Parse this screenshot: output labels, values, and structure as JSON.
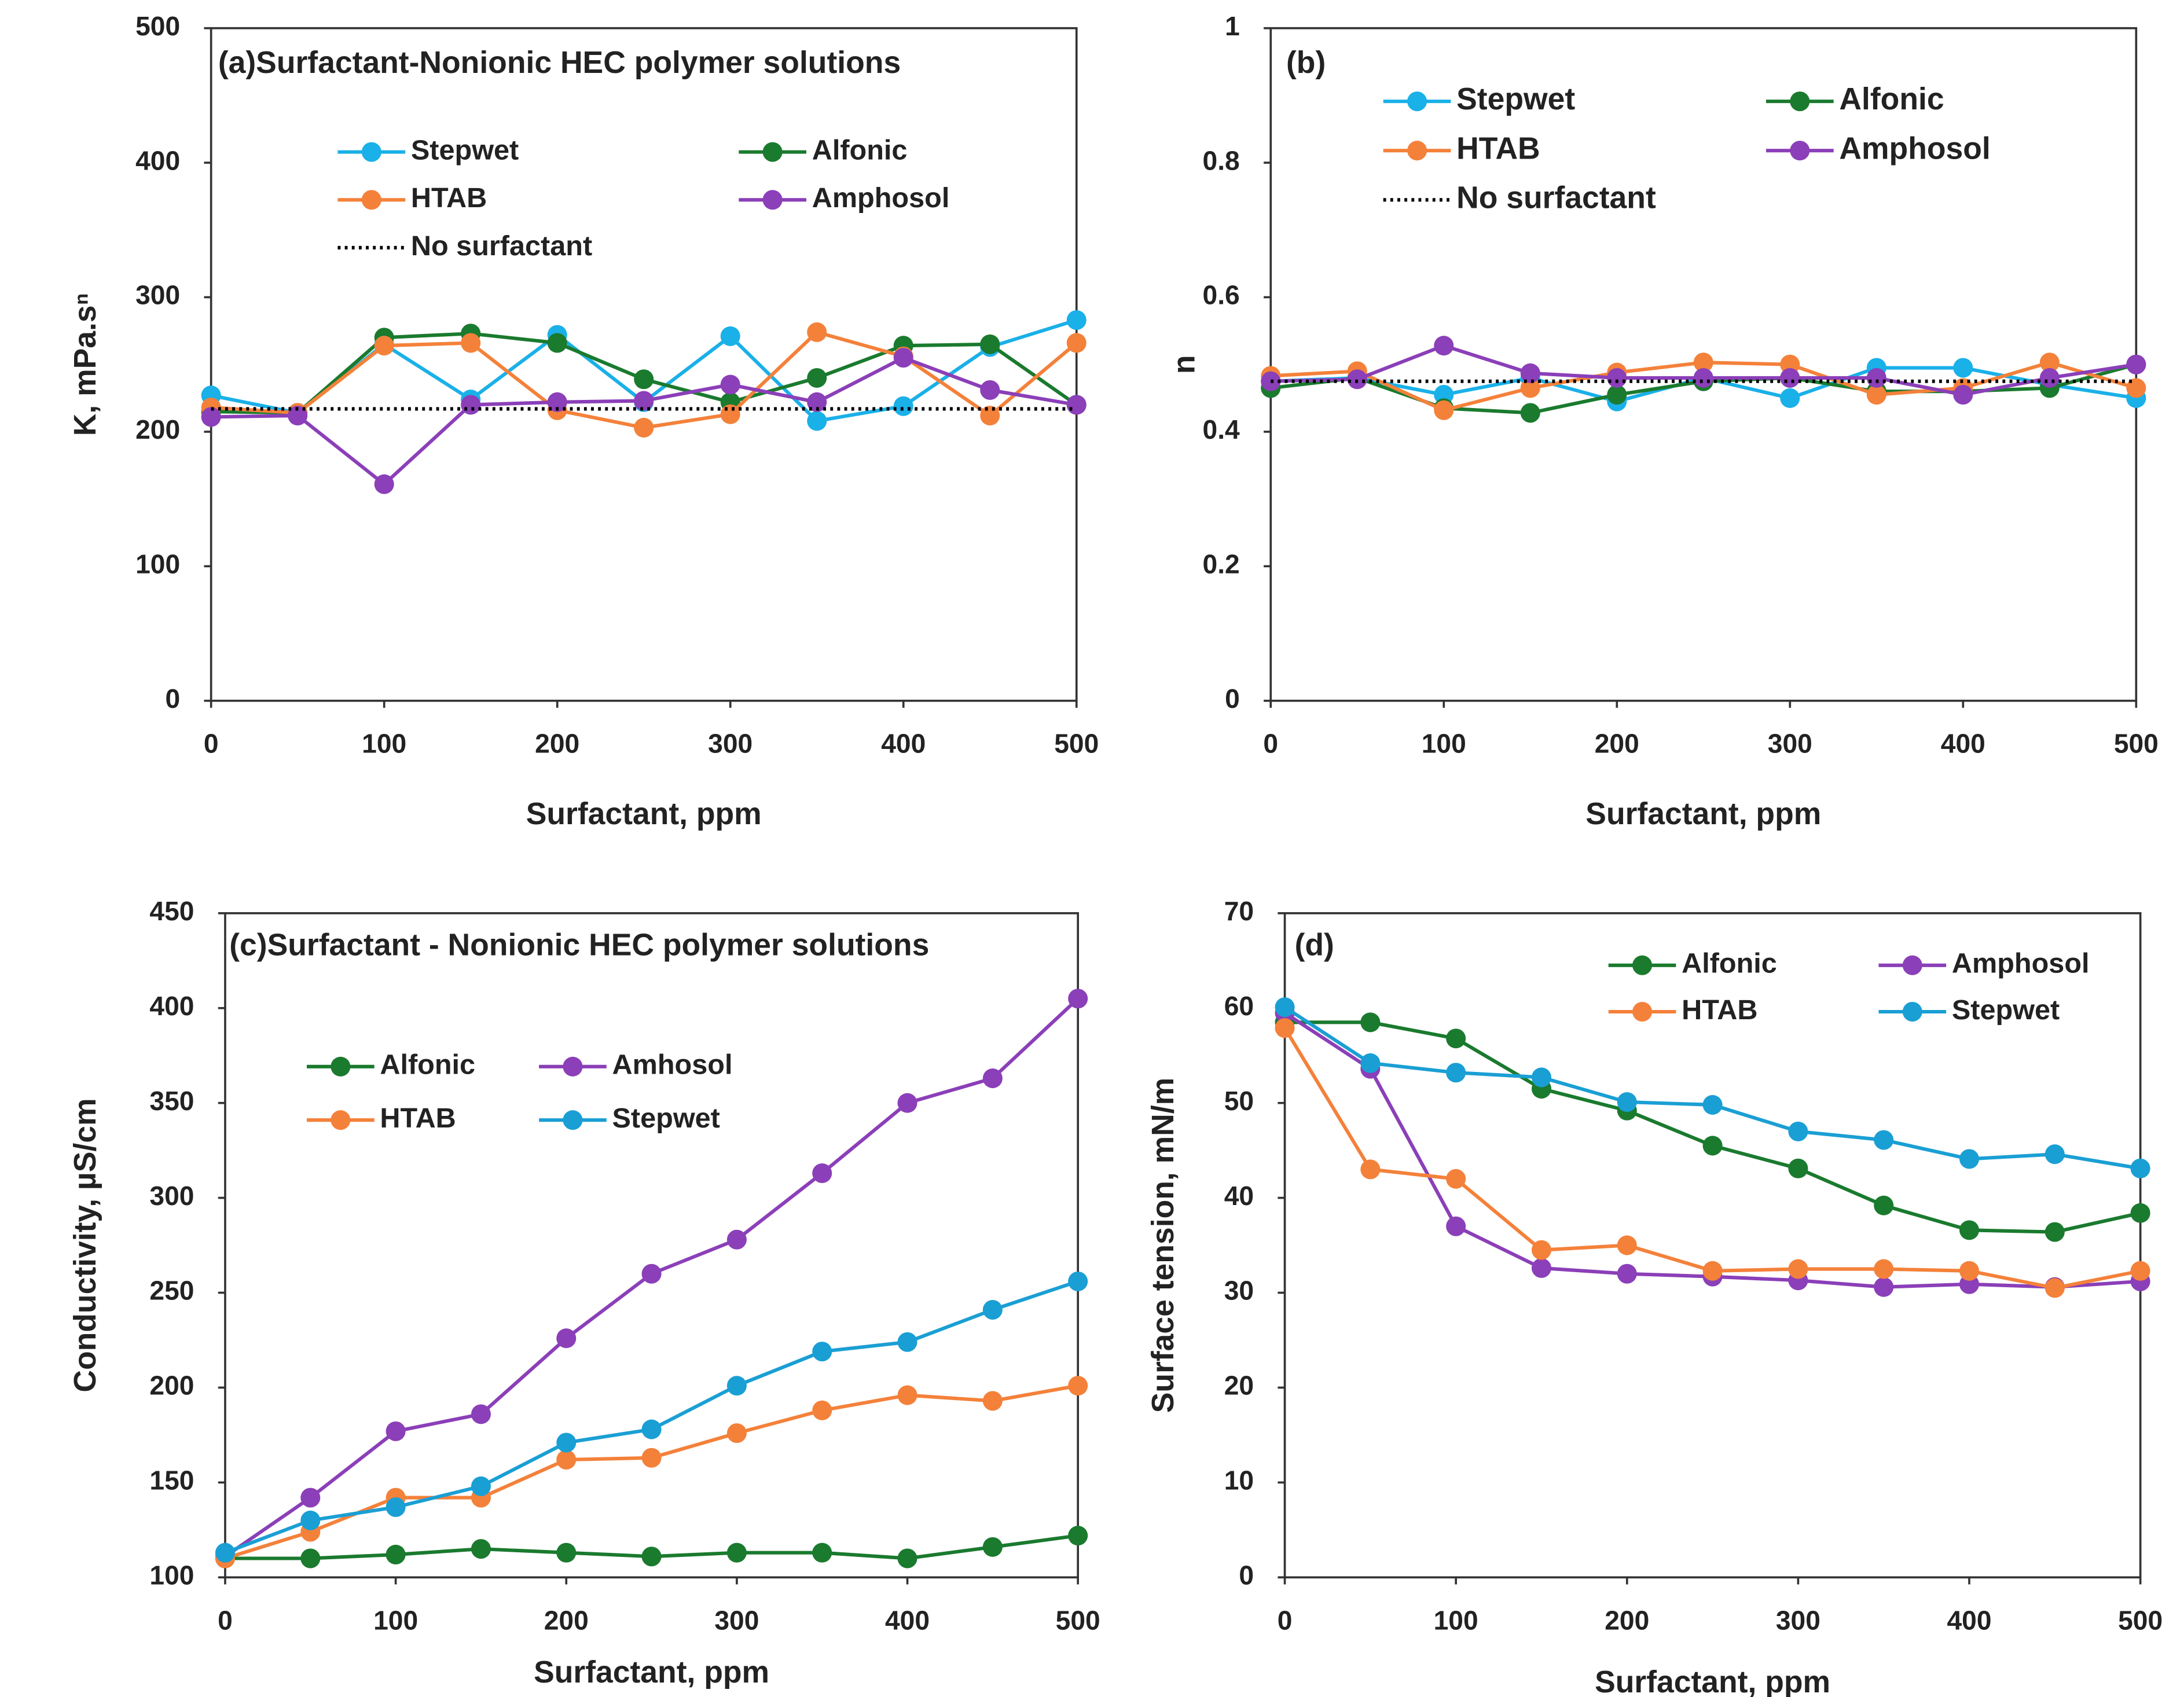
{
  "chart_data": [
    {
      "type": "line",
      "title": "(a)Surfactant-Nonionic HEC polymer solutions",
      "x_label": "Surfactant, ppm",
      "y_label": "K, mPa.sⁿ",
      "x": [
        0,
        50,
        100,
        150,
        200,
        250,
        300,
        350,
        400,
        450,
        500
      ],
      "xlim": [
        0,
        500
      ],
      "xticks": [
        0,
        100,
        200,
        300,
        400,
        500
      ],
      "ylim": [
        0,
        500
      ],
      "yticks": [
        0,
        100,
        200,
        300,
        400,
        500
      ],
      "series": [
        {
          "name": "Stepwet",
          "color": "#1ab0e8",
          "values": [
            227,
            214,
            265,
            224,
            272,
            222,
            271,
            208,
            219,
            263,
            283
          ]
        },
        {
          "name": "Alfonic",
          "color": "#1a7a2e",
          "values": [
            215,
            214,
            270,
            273,
            266,
            239,
            222,
            240,
            264,
            265,
            220
          ]
        },
        {
          "name": "HTAB",
          "color": "#f4813a",
          "values": [
            218,
            214,
            264,
            266,
            216,
            203,
            213,
            274,
            256,
            212,
            266
          ]
        },
        {
          "name": "Amphosol",
          "color": "#8b3fb8",
          "values": [
            211,
            212,
            161,
            220,
            222,
            223,
            235,
            222,
            255,
            231,
            220
          ]
        },
        {
          "name": "No surfactant",
          "color": "#000000",
          "dash": "dotted",
          "values": [
            217,
            217,
            217,
            217,
            217,
            217,
            217,
            217,
            217,
            217,
            217
          ]
        }
      ]
    },
    {
      "type": "line",
      "title": "(b)",
      "x_label": "Surfactant, ppm",
      "y_label": "n",
      "x": [
        0,
        50,
        100,
        150,
        200,
        250,
        300,
        350,
        400,
        450,
        500
      ],
      "xlim": [
        0,
        500
      ],
      "xticks": [
        0,
        100,
        200,
        300,
        400,
        500
      ],
      "ylim": [
        0,
        1
      ],
      "yticks": [
        0,
        0.2,
        0.4,
        0.6,
        0.8,
        1
      ],
      "series": [
        {
          "name": "Stepwet",
          "color": "#1ab0e8",
          "values": [
            0.475,
            0.48,
            0.455,
            0.48,
            0.445,
            0.48,
            0.45,
            0.495,
            0.495,
            0.47,
            0.45
          ]
        },
        {
          "name": "Alfonic",
          "color": "#1a7a2e",
          "values": [
            0.465,
            0.48,
            0.435,
            0.428,
            0.455,
            0.475,
            0.48,
            0.46,
            0.46,
            0.465,
            0.5
          ]
        },
        {
          "name": "HTAB",
          "color": "#f4813a",
          "values": [
            0.483,
            0.49,
            0.432,
            0.465,
            0.488,
            0.503,
            0.5,
            0.455,
            0.465,
            0.503,
            0.465
          ]
        },
        {
          "name": "Amphosol",
          "color": "#8b3fb8",
          "values": [
            0.475,
            0.478,
            0.528,
            0.487,
            0.48,
            0.48,
            0.48,
            0.48,
            0.455,
            0.48,
            0.5
          ]
        },
        {
          "name": "No surfactant",
          "color": "#000000",
          "dash": "dotted",
          "values": [
            0.475,
            0.475,
            0.475,
            0.475,
            0.475,
            0.475,
            0.475,
            0.475,
            0.475,
            0.475,
            0.475
          ]
        }
      ]
    },
    {
      "type": "line",
      "title": "(c)Surfactant - Nonionic HEC polymer solutions",
      "x_label": "Surfactant, ppm",
      "y_label": "Conductivity, µS/cm",
      "x": [
        0,
        50,
        100,
        150,
        200,
        250,
        300,
        350,
        400,
        450,
        500
      ],
      "xlim": [
        0,
        500
      ],
      "xticks": [
        0,
        100,
        200,
        300,
        400,
        500
      ],
      "ylim": [
        100,
        450
      ],
      "yticks": [
        100,
        150,
        200,
        250,
        300,
        350,
        400,
        450
      ],
      "series": [
        {
          "name": "Alfonic",
          "color": "#1a7a2e",
          "values": [
            110,
            110,
            112,
            115,
            113,
            111,
            113,
            113,
            110,
            116,
            122
          ]
        },
        {
          "name": "Amhosol",
          "color": "#8b3fb8",
          "values": [
            111,
            142,
            177,
            186,
            226,
            260,
            278,
            313,
            350,
            363,
            405
          ]
        },
        {
          "name": "HTAB",
          "color": "#f4813a",
          "values": [
            110,
            124,
            142,
            142,
            162,
            163,
            176,
            188,
            196,
            193,
            201
          ]
        },
        {
          "name": "Stepwet",
          "color": "#1a9fd4",
          "values": [
            113,
            130,
            137,
            148,
            171,
            178,
            201,
            219,
            224,
            241,
            256
          ]
        }
      ]
    },
    {
      "type": "line",
      "title": "(d)",
      "x_label": "Surfactant, ppm",
      "y_label": "Surface tension, mN/m",
      "x": [
        0,
        50,
        100,
        150,
        200,
        250,
        300,
        350,
        400,
        450,
        500
      ],
      "xlim": [
        0,
        500
      ],
      "xticks": [
        0,
        100,
        200,
        300,
        400,
        500
      ],
      "ylim": [
        0,
        70
      ],
      "yticks": [
        0,
        10,
        20,
        30,
        40,
        50,
        60,
        70
      ],
      "series": [
        {
          "name": "Alfonic",
          "color": "#1a7a2e",
          "values": [
            58.5,
            58.5,
            56.8,
            51.5,
            49.2,
            45.5,
            43.1,
            39.2,
            36.6,
            36.4,
            38.4
          ]
        },
        {
          "name": "Amphosol",
          "color": "#8b3fb8",
          "values": [
            59.5,
            53.6,
            37,
            32.6,
            32,
            31.7,
            31.3,
            30.6,
            30.9,
            30.6,
            31.2
          ]
        },
        {
          "name": "HTAB",
          "color": "#f4813a",
          "values": [
            57.9,
            43,
            42,
            34.5,
            35,
            32.3,
            32.5,
            32.5,
            32.3,
            30.5,
            32.3
          ]
        },
        {
          "name": "Stepwet",
          "color": "#1a9fd4",
          "values": [
            60.1,
            54.2,
            53.2,
            52.7,
            50.1,
            49.8,
            47,
            46.1,
            44.1,
            44.6,
            43.1
          ]
        }
      ]
    }
  ]
}
